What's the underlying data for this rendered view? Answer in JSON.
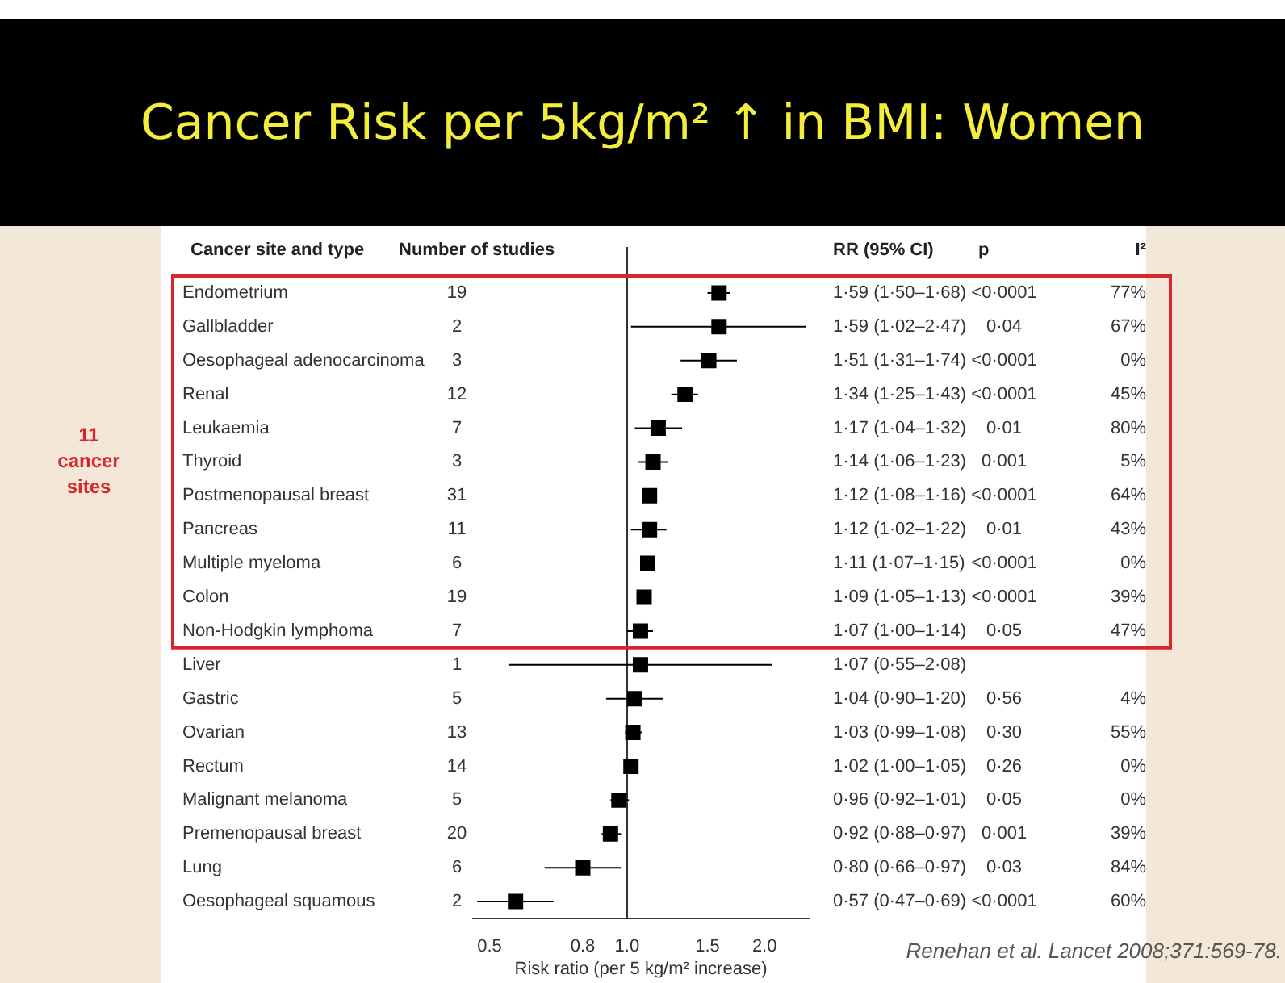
{
  "chart_data": {
    "type": "scatter",
    "title": "Cancer Risk per 5kg/m² ↑ in BMI: Women",
    "xlabel": "Risk ratio (per 5 kg/m² increase)",
    "ylabel": "Cancer site and type",
    "orientation": "horizontal",
    "log": "x",
    "marker": "square",
    "color": "#000000",
    "grid": false,
    "legend": false,
    "categories": [
      "Endometrium",
      "Gallbladder",
      "Oesophageal adenocarcinoma",
      "Renal",
      "Leukaemia",
      "Thyroid",
      "Postmenopausal breast",
      "Pancreas",
      "Multiple myeloma",
      "Colon",
      "Non-Hodgkin lymphoma",
      "Liver",
      "Gastric",
      "Ovarian",
      "Rectum",
      "Malignant melanoma",
      "Premenopausal breast",
      "Lung",
      "Oesophageal squamous"
    ],
    "values": [
      1.59,
      1.59,
      1.51,
      1.34,
      1.17,
      1.14,
      1.12,
      1.12,
      1.11,
      1.09,
      1.07,
      1.07,
      1.04,
      1.03,
      1.02,
      0.96,
      0.92,
      0.8,
      0.57
    ],
    "errors": [
      [
        1.5,
        1.68
      ],
      [
        1.02,
        2.47
      ],
      [
        1.31,
        1.74
      ],
      [
        1.25,
        1.43
      ],
      [
        1.04,
        1.32
      ],
      [
        1.06,
        1.23
      ],
      [
        1.08,
        1.16
      ],
      [
        1.02,
        1.22
      ],
      [
        1.07,
        1.15
      ],
      [
        1.05,
        1.13
      ],
      [
        1.0,
        1.14
      ],
      [
        0.55,
        2.08
      ],
      [
        0.9,
        1.2
      ],
      [
        0.99,
        1.08
      ],
      [
        1.0,
        1.05
      ],
      [
        0.92,
        1.01
      ],
      [
        0.88,
        0.97
      ],
      [
        0.66,
        0.97
      ],
      [
        0.47,
        0.69
      ]
    ],
    "value_labels": [
      "1·59 (1·50–1·68)",
      "1·59 (1·02–2·47)",
      "1·51 (1·31–1·74)",
      "1·34 (1·25–1·43)",
      "1·17 (1·04–1·32)",
      "1·14 (1·06–1·23)",
      "1·12 (1·08–1·16)",
      "1·12 (1·02–1·22)",
      "1·11 (1·07–1·15)",
      "1·09 (1·05–1·13)",
      "1·07 (1·00–1·14)",
      "1·07 (0·55–2·08)",
      "1·04 (0·90–1·20)",
      "1·03 (0·99–1·08)",
      "1·02 (1·00–1·05)",
      "0·96 (0·92–1·01)",
      "0·92 (0·88–0·97)",
      "0·80 (0·66–0·97)",
      "0·57 (0·47–0·69)"
    ],
    "xlim": [
      0.46,
      2.5
    ],
    "xticks": [
      0.5,
      0.8,
      {
        "value": 1,
        "label": "1.0"
      },
      1.5,
      {
        "value": 2,
        "label": "2.0"
      }
    ],
    "ref_lines": [
      {
        "axis": "x",
        "value": 1,
        "color": "#333333"
      }
    ],
    "annotations": [
      "Number of studies",
      "RR (95% CI)",
      "p",
      "I²",
      "Renehan et al. Lancet 2008;371:569-78.",
      "11 cancer sites",
      "19",
      "2",
      "3",
      "12",
      "7",
      "3",
      "31",
      "11",
      "6",
      "19",
      "7",
      "1",
      "5",
      "13",
      "14",
      "5",
      "20",
      "6",
      "2",
      "<0·0001",
      "0·04",
      "<0·0001",
      "<0·0001",
      "0·01",
      "0·001",
      "<0·0001",
      "0·01",
      "<0·0001",
      "<0·0001",
      "0·05",
      "0·56",
      "0·30",
      "0·26",
      "0·05",
      "0·001",
      "0·03",
      "<0·0001",
      "77%",
      "67%",
      "0%",
      "45%",
      "80%",
      "5%",
      "64%",
      "43%",
      "0%",
      "39%",
      "47%",
      "4%",
      "55%",
      "0%",
      "0%",
      "39%",
      "84%",
      "60%"
    ]
  }
}
